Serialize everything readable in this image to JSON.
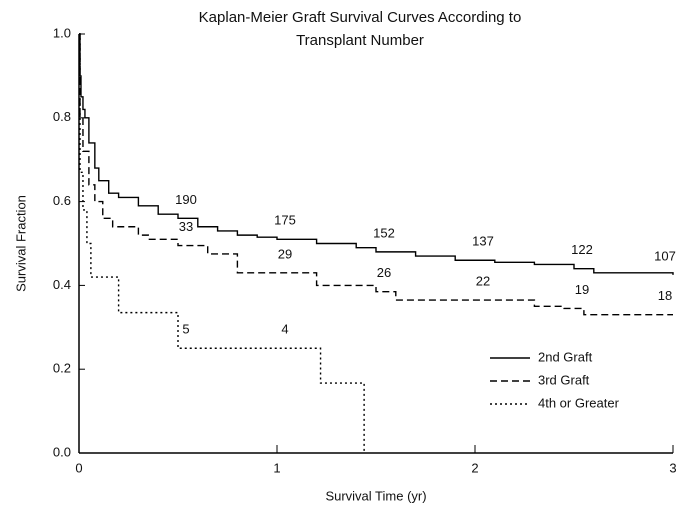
{
  "chart_data": {
    "type": "step-line",
    "title": "Kaplan-Meier Graft Survival Curves According to Transplant Number",
    "x_label": "Survival Time (yr)",
    "y_label": "Survival Fraction",
    "xlim": [
      0,
      3
    ],
    "ylim": [
      0,
      1
    ],
    "xticks": [
      0,
      1,
      2,
      3
    ],
    "yticks": [
      {
        "value": 0,
        "label": "0.0"
      },
      {
        "value": 0.2,
        "label": "0.2"
      },
      {
        "value": 0.4,
        "label": "0.4"
      },
      {
        "value": 0.6,
        "label": "0.6"
      },
      {
        "value": 0.8,
        "label": "0.8"
      },
      {
        "value": 1,
        "label": "1.0"
      }
    ],
    "legend": "lower right",
    "at_risk_x": [
      0.5,
      1,
      1.5,
      2,
      2.5,
      3
    ],
    "series": [
      {
        "name": "2nd Graft",
        "color": "#000000",
        "dash": "solid",
        "x": [
          0,
          0.005,
          0.01,
          0.02,
          0.03,
          0.05,
          0.08,
          0.1,
          0.15,
          0.2,
          0.3,
          0.4,
          0.5,
          0.6,
          0.7,
          0.8,
          0.9,
          1.0,
          1.2,
          1.4,
          1.5,
          1.7,
          1.9,
          2.1,
          2.3,
          2.5,
          2.6,
          3.0
        ],
        "values": [
          1.0,
          0.9,
          0.85,
          0.82,
          0.8,
          0.74,
          0.68,
          0.65,
          0.62,
          0.61,
          0.59,
          0.57,
          0.56,
          0.54,
          0.53,
          0.52,
          0.515,
          0.51,
          0.5,
          0.49,
          0.48,
          0.47,
          0.46,
          0.455,
          0.45,
          0.44,
          0.43,
          0.425
        ],
        "at_risk": [
          190,
          175,
          152,
          137,
          122,
          107
        ]
      },
      {
        "name": "3rd Graft",
        "color": "#000000",
        "dash": "dashed",
        "x": [
          0,
          0.005,
          0.02,
          0.05,
          0.08,
          0.12,
          0.17,
          0.3,
          0.35,
          0.5,
          0.65,
          0.8,
          1.0,
          1.2,
          1.5,
          1.6,
          2.3,
          2.45,
          2.55,
          3.0
        ],
        "values": [
          1.0,
          0.8,
          0.72,
          0.64,
          0.6,
          0.56,
          0.54,
          0.52,
          0.51,
          0.495,
          0.475,
          0.43,
          0.43,
          0.4,
          0.385,
          0.365,
          0.35,
          0.345,
          0.33,
          0.33
        ],
        "at_risk": [
          33,
          29,
          26,
          22,
          19,
          18
        ]
      },
      {
        "name": "4th or Greater",
        "color": "#000000",
        "dash": "dotted",
        "x": [
          0,
          0.005,
          0.02,
          0.04,
          0.06,
          0.2,
          0.5,
          1.22,
          1.44
        ],
        "values": [
          1.0,
          0.67,
          0.58,
          0.5,
          0.42,
          0.335,
          0.25,
          0.167,
          0.0
        ],
        "at_risk": [
          5,
          4
        ]
      }
    ]
  }
}
